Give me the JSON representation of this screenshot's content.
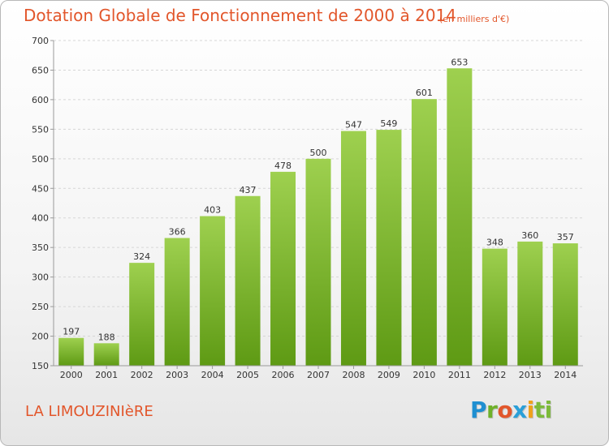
{
  "header": {
    "title": "Dotation Globale de Fonctionnement de 2000 à 2014",
    "unit": "(en milliers d'€)"
  },
  "footer": {
    "commune": "LA LIMOUZINIèRE",
    "logo_letters": [
      "P",
      "r",
      "o",
      "x",
      "i",
      "t",
      "i"
    ]
  },
  "colors": {
    "title": "#e2562b",
    "bar_top": "#9ed04f",
    "bar_bottom": "#5e9a14",
    "grid": "#d6d6d6"
  },
  "chart_data": {
    "type": "bar",
    "title": "Dotation Globale de Fonctionnement de 2000 à 2014",
    "xlabel": "",
    "ylabel": "",
    "categories": [
      "2000",
      "2001",
      "2002",
      "2003",
      "2004",
      "2005",
      "2006",
      "2007",
      "2008",
      "2009",
      "2010",
      "2011",
      "2012",
      "2013",
      "2014"
    ],
    "values": [
      197,
      188,
      324,
      366,
      403,
      437,
      478,
      500,
      547,
      549,
      601,
      653,
      348,
      360,
      357
    ],
    "ylim": [
      150,
      700
    ],
    "yticks": [
      150,
      200,
      250,
      300,
      350,
      400,
      450,
      500,
      550,
      600,
      650,
      700
    ],
    "grid": true,
    "legend": "none"
  }
}
